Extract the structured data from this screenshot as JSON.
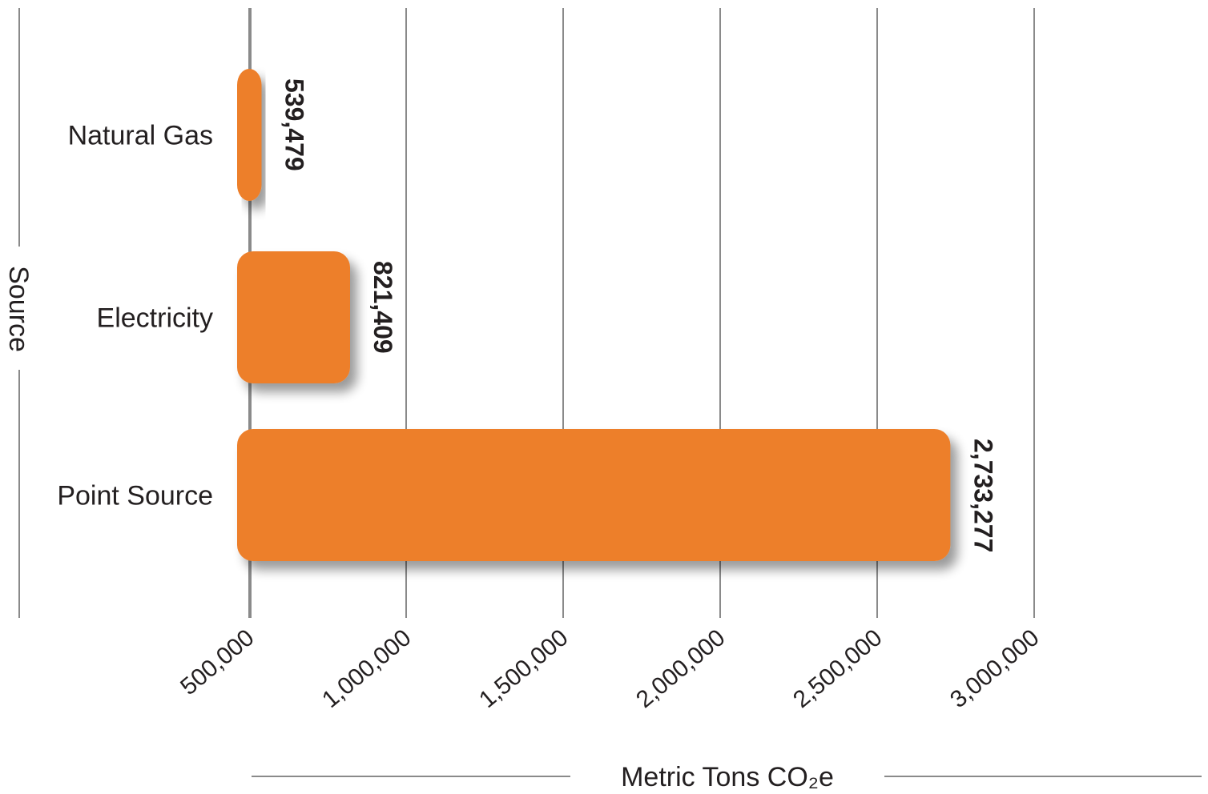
{
  "chart_data": {
    "type": "bar",
    "orientation": "horizontal",
    "categories": [
      "Natural Gas",
      "Electricity",
      "Point Source"
    ],
    "values": [
      539479,
      821409,
      2733277
    ],
    "value_labels": [
      "539,479",
      "821,409",
      "2,733,277"
    ],
    "xlabel": "Metric Tons CO₂e",
    "ylabel": "Source",
    "xticks": [
      500000,
      1000000,
      1500000,
      2000000,
      2500000,
      3000000
    ],
    "xtick_labels": [
      "500,000",
      "1,000,000",
      "1,500,000",
      "2,000,000",
      "2,500,000",
      "3,000,000"
    ],
    "xlim": [
      0,
      3000000
    ],
    "grid": true,
    "bar_color": "#ed7f2b"
  }
}
